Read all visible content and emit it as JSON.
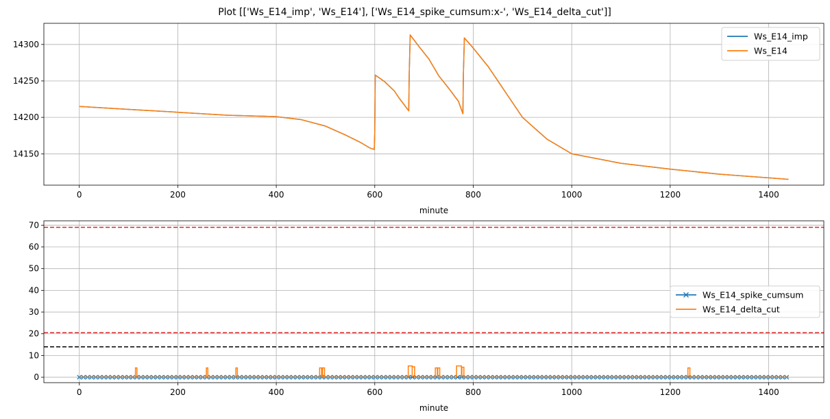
{
  "figure": {
    "suptitle": "Plot [['Ws_E14_imp', 'Ws_E14'], ['Ws_E14_spike_cumsum:x-', 'Ws_E14_delta_cut']]"
  },
  "chart_data": [
    {
      "type": "line",
      "xlabel": "minute",
      "ylabel": "",
      "xlim": [
        -72,
        1512
      ],
      "ylim": [
        14107,
        14329
      ],
      "xticks": [
        0,
        200,
        400,
        600,
        800,
        1000,
        1200,
        1400
      ],
      "yticks": [
        14150,
        14200,
        14250,
        14300
      ],
      "grid": true,
      "legend_position": "top-right",
      "series": [
        {
          "name": "Ws_E14_imp",
          "color": "#1f77b4",
          "x": [
            0,
            100,
            200,
            300,
            400,
            450,
            500,
            540,
            570,
            590,
            599,
            600,
            601,
            620,
            640,
            650,
            669,
            670,
            672,
            690,
            710,
            730,
            750,
            770,
            779,
            780,
            782,
            800,
            830,
            860,
            900,
            950,
            1000,
            1100,
            1200,
            1300,
            1440
          ],
          "y": [
            14215,
            14211,
            14207,
            14203,
            14201,
            14197,
            14188,
            14176,
            14166,
            14158,
            14156,
            14180,
            14258,
            14249,
            14236,
            14226,
            14209,
            14260,
            14313,
            14297,
            14280,
            14257,
            14240,
            14222,
            14205,
            14260,
            14309,
            14295,
            14270,
            14240,
            14200,
            14170,
            14150,
            14137,
            14129,
            14122,
            14115
          ]
        },
        {
          "name": "Ws_E14",
          "color": "#ff7f0e",
          "x": [
            0,
            100,
            200,
            300,
            400,
            450,
            500,
            540,
            570,
            590,
            599,
            600,
            601,
            620,
            640,
            650,
            669,
            670,
            672,
            690,
            710,
            730,
            750,
            770,
            779,
            780,
            782,
            800,
            830,
            860,
            900,
            950,
            1000,
            1100,
            1200,
            1300,
            1440
          ],
          "y": [
            14215,
            14211,
            14207,
            14203,
            14201,
            14197,
            14188,
            14176,
            14166,
            14158,
            14156,
            14180,
            14258,
            14249,
            14236,
            14226,
            14209,
            14260,
            14313,
            14297,
            14280,
            14257,
            14240,
            14222,
            14205,
            14260,
            14309,
            14295,
            14270,
            14240,
            14200,
            14170,
            14150,
            14137,
            14129,
            14122,
            14115
          ]
        }
      ]
    },
    {
      "type": "line",
      "xlabel": "minute",
      "ylabel": "",
      "xlim": [
        -72,
        1512
      ],
      "ylim": [
        -2.5,
        72
      ],
      "xticks": [
        0,
        200,
        400,
        600,
        800,
        1000,
        1200,
        1400
      ],
      "yticks": [
        0,
        10,
        20,
        30,
        40,
        50,
        60,
        70
      ],
      "grid": true,
      "legend_position": "center-right",
      "hlines": [
        {
          "y": 69,
          "color": "#d62728"
        },
        {
          "y": 20.5,
          "color": "#d62728"
        },
        {
          "y": 14,
          "color": "#000000"
        }
      ],
      "series": [
        {
          "name": "Ws_E14_spike_cumsum",
          "color": "#1f77b4",
          "marker": "x",
          "x": [
            0,
            1440
          ],
          "y": [
            0,
            0
          ]
        },
        {
          "name": "Ws_E14_delta_cut",
          "color": "#ff7f0e",
          "spikes": [
            [
              114,
              117,
              4.3
            ],
            [
              258,
              261,
              4.3
            ],
            [
              318,
              321,
              4.3
            ],
            [
              488,
              492,
              4.3
            ],
            [
              494,
              498,
              4.3
            ],
            [
              668,
              676,
              5.2
            ],
            [
              676,
              681,
              4.8
            ],
            [
              723,
              727,
              4.3
            ],
            [
              728,
              732,
              4.3
            ],
            [
              766,
              776,
              5.2
            ],
            [
              777,
              781,
              4.6
            ],
            [
              1236,
              1240,
              4.3
            ]
          ]
        }
      ]
    }
  ]
}
